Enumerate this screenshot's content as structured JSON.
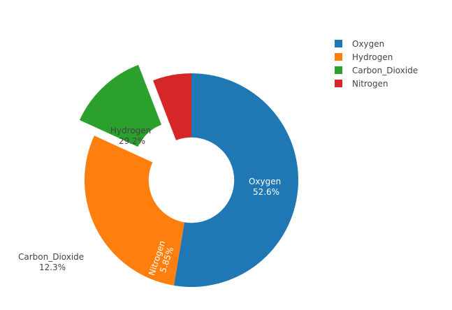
{
  "chart_data": {
    "type": "pie",
    "title": "",
    "hole": 0.4,
    "categories": [
      "Oxygen",
      "Hydrogen",
      "Carbon_Dioxide",
      "Nitrogen"
    ],
    "values": [
      52.6,
      29.2,
      12.3,
      5.85
    ],
    "labels_text": [
      "52.6%",
      "29.2%",
      "12.3%",
      "5.85%"
    ],
    "colors": [
      "#1f77b4",
      "#ff7f0e",
      "#2ca02c",
      "#d62728"
    ],
    "pull": [
      0,
      0,
      0.2,
      0
    ],
    "direction": "clockwise",
    "rotation_start_deg": 90,
    "textinfo": "label+percent",
    "legend_position": "top-right"
  },
  "legend": {
    "items": [
      {
        "label": "Oxygen",
        "color": "#1f77b4"
      },
      {
        "label": "Hydrogen",
        "color": "#ff7f0e"
      },
      {
        "label": "Carbon_Dioxide",
        "color": "#2ca02c"
      },
      {
        "label": "Nitrogen",
        "color": "#d62728"
      }
    ]
  },
  "slice_labels": [
    {
      "name": "Oxygen",
      "percent": "52.6%",
      "text_color": "#ffffff"
    },
    {
      "name": "Hydrogen",
      "percent": "29.2%",
      "text_color": "#444444"
    },
    {
      "name": "Carbon_Dioxide",
      "percent": "12.3%",
      "text_color": "#444444"
    },
    {
      "name": "Nitrogen",
      "percent": "5.85%",
      "text_color": "#ffffff"
    }
  ]
}
